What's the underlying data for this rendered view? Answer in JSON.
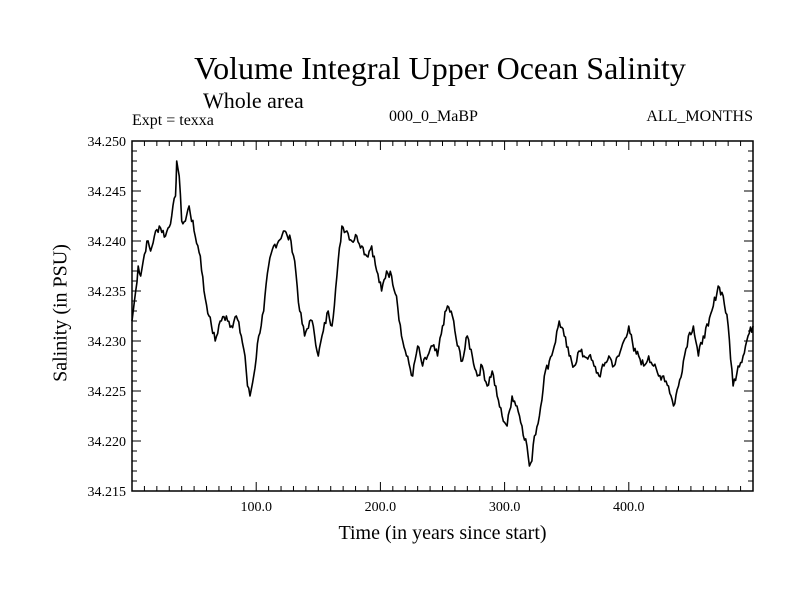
{
  "chart_data": {
    "type": "line",
    "title": "Volume Integral Upper Ocean Salinity",
    "subtitle": "Whole area",
    "experiment_label": "Expt = texxa",
    "model_label": "000_0_MaBP",
    "months_label": "ALL_MONTHS",
    "xlabel": "Time (in years since start)",
    "ylabel": "Salinity (in PSU)",
    "xlim": [
      0,
      500
    ],
    "ylim": [
      34.215,
      34.25
    ],
    "x_tick_labels": [
      "100.0",
      "200.0",
      "300.0",
      "400.0"
    ],
    "x_ticks": [
      100,
      200,
      300,
      400
    ],
    "y_tick_labels": [
      "34.250",
      "34.245",
      "34.240",
      "34.235",
      "34.230",
      "34.225",
      "34.220",
      "34.215"
    ],
    "y_ticks": [
      34.25,
      34.245,
      34.24,
      34.235,
      34.23,
      34.225,
      34.22,
      34.215
    ],
    "series": [
      {
        "name": "Salinity",
        "x": [
          0,
          3,
          5,
          7,
          9,
          12,
          15,
          18,
          22,
          27,
          32,
          35,
          36,
          38,
          40,
          43,
          46,
          50,
          55,
          58,
          62,
          64,
          67,
          71,
          76,
          80,
          84,
          88,
          91,
          93,
          95,
          98,
          102,
          106,
          110,
          114,
          118,
          122,
          125,
          128,
          131,
          135,
          139,
          143,
          146,
          150,
          154,
          158,
          161,
          165,
          169,
          173,
          177,
          181,
          185,
          189,
          193,
          197,
          201,
          205,
          209,
          213,
          217,
          221,
          226,
          230,
          234,
          238,
          242,
          246,
          250,
          254,
          258,
          262,
          266,
          270,
          274,
          278,
          282,
          286,
          290,
          294,
          298,
          302,
          306,
          310,
          314,
          318,
          320,
          322,
          324,
          328,
          332,
          336,
          340,
          344,
          348,
          352,
          356,
          360,
          364,
          368,
          372,
          376,
          380,
          384,
          388,
          392,
          396,
          400,
          404,
          408,
          412,
          416,
          420,
          424,
          428,
          432,
          436,
          440,
          444,
          448,
          452,
          456,
          460,
          464,
          468,
          472,
          476,
          480,
          484,
          488,
          492,
          496,
          500
        ],
        "values": [
          34.232,
          34.235,
          34.2375,
          34.2365,
          34.238,
          34.24,
          34.239,
          34.2405,
          34.2415,
          34.2405,
          34.2425,
          34.2445,
          34.248,
          34.2465,
          34.242,
          34.242,
          34.2435,
          34.241,
          34.2385,
          34.235,
          34.2325,
          34.2315,
          34.23,
          34.232,
          34.2325,
          34.2315,
          34.2325,
          34.2305,
          34.2285,
          34.2255,
          34.2245,
          34.2265,
          34.2305,
          34.233,
          34.2375,
          34.2395,
          34.24,
          34.241,
          34.2405,
          34.24,
          34.238,
          34.233,
          34.2305,
          34.232,
          34.2315,
          34.2285,
          34.231,
          34.233,
          34.2315,
          34.2365,
          34.2415,
          34.241,
          34.24,
          34.2405,
          34.2395,
          34.2385,
          34.2395,
          34.237,
          34.235,
          34.237,
          34.2365,
          34.2345,
          34.2305,
          34.2285,
          34.2265,
          34.2295,
          34.2275,
          34.2285,
          34.2295,
          34.2285,
          34.2315,
          34.2335,
          34.2325,
          34.2295,
          34.228,
          34.2305,
          34.2285,
          34.2265,
          34.2275,
          34.2255,
          34.227,
          34.2245,
          34.2225,
          34.2215,
          34.2245,
          34.2235,
          34.2215,
          34.2195,
          34.2175,
          34.218,
          34.2205,
          34.2225,
          34.2265,
          34.228,
          34.2295,
          34.232,
          34.2305,
          34.2285,
          34.2275,
          34.229,
          34.2285,
          34.2285,
          34.2275,
          34.2265,
          34.2275,
          34.2285,
          34.2275,
          34.2285,
          34.23,
          34.2315,
          34.229,
          34.2285,
          34.2275,
          34.2285,
          34.2275,
          34.2265,
          34.2265,
          34.2255,
          34.2235,
          34.2255,
          34.228,
          34.2305,
          34.2315,
          34.2285,
          34.2305,
          34.2315,
          34.2335,
          34.2355,
          34.2345,
          34.2315,
          34.2255,
          34.2275,
          34.2285,
          34.2305,
          34.2315
        ]
      }
    ],
    "grid": false,
    "colors": {
      "line": "#000000",
      "axes": "#000000",
      "background": "#ffffff"
    }
  }
}
